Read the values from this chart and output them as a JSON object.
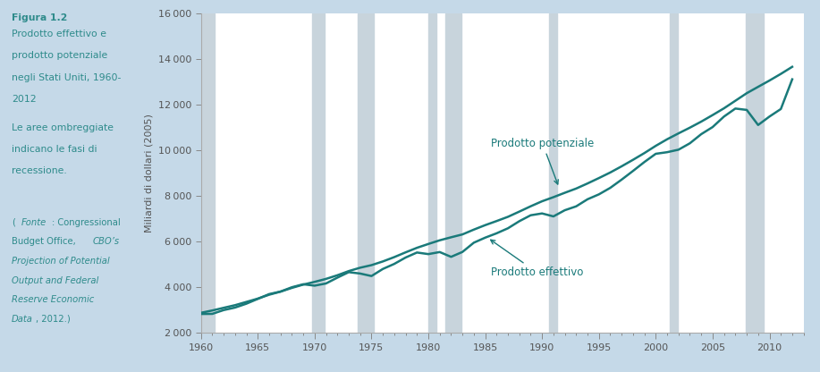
{
  "background_color": "#c5d9e8",
  "plot_bg_color": "#ffffff",
  "line_color": "#1a7a7a",
  "recession_color": "#c8d4dc",
  "ylabel": "Miliardi di dollari (2005)",
  "ylim": [
    2000,
    16000
  ],
  "xlim": [
    1960,
    2013
  ],
  "yticks": [
    2000,
    4000,
    6000,
    8000,
    10000,
    12000,
    14000,
    16000
  ],
  "xticks": [
    1960,
    1965,
    1970,
    1975,
    1980,
    1985,
    1990,
    1995,
    2000,
    2005,
    2010
  ],
  "recession_bands": [
    [
      1960.0,
      1961.2
    ],
    [
      1969.8,
      1970.9
    ],
    [
      1973.8,
      1975.2
    ],
    [
      1980.0,
      1980.7
    ],
    [
      1981.5,
      1982.9
    ],
    [
      1990.6,
      1991.3
    ],
    [
      2001.2,
      2001.9
    ],
    [
      2007.9,
      2009.5
    ]
  ],
  "label_potenziale": "Prodotto potenziale",
  "label_effettivo": "Prodotto effettivo",
  "years_potential": [
    1960,
    1961,
    1962,
    1963,
    1964,
    1965,
    1966,
    1967,
    1968,
    1969,
    1970,
    1971,
    1972,
    1973,
    1974,
    1975,
    1976,
    1977,
    1978,
    1979,
    1980,
    1981,
    1982,
    1983,
    1984,
    1985,
    1986,
    1987,
    1988,
    1989,
    1990,
    1991,
    1992,
    1993,
    1994,
    1995,
    1996,
    1997,
    1998,
    1999,
    2000,
    2001,
    2002,
    2003,
    2004,
    2005,
    2006,
    2007,
    2008,
    2009,
    2010,
    2011,
    2012
  ],
  "potential_gdp": [
    2881,
    2983,
    3100,
    3215,
    3358,
    3502,
    3672,
    3808,
    3971,
    4116,
    4235,
    4365,
    4524,
    4707,
    4854,
    4967,
    5129,
    5318,
    5527,
    5726,
    5893,
    6054,
    6186,
    6312,
    6522,
    6718,
    6896,
    7082,
    7310,
    7543,
    7762,
    7942,
    8134,
    8319,
    8542,
    8778,
    9022,
    9293,
    9577,
    9872,
    10188,
    10476,
    10734,
    10984,
    11248,
    11535,
    11831,
    12161,
    12492,
    12770,
    13046,
    13337,
    13646
  ],
  "years_actual": [
    1960,
    1961,
    1962,
    1963,
    1964,
    1965,
    1966,
    1967,
    1968,
    1969,
    1970,
    1971,
    1972,
    1973,
    1974,
    1975,
    1976,
    1977,
    1978,
    1979,
    1980,
    1981,
    1982,
    1983,
    1984,
    1985,
    1986,
    1987,
    1988,
    1989,
    1990,
    1991,
    1992,
    1993,
    1994,
    1995,
    1996,
    1997,
    1998,
    1999,
    2000,
    2001,
    2002,
    2003,
    2004,
    2005,
    2006,
    2007,
    2008,
    2009,
    2010,
    2011,
    2012
  ],
  "actual_gdp": [
    2830,
    2835,
    3000,
    3110,
    3280,
    3490,
    3700,
    3810,
    4000,
    4130,
    4070,
    4165,
    4420,
    4660,
    4600,
    4490,
    4800,
    5020,
    5300,
    5520,
    5450,
    5540,
    5330,
    5545,
    5950,
    6170,
    6360,
    6580,
    6890,
    7150,
    7230,
    7100,
    7370,
    7540,
    7850,
    8065,
    8350,
    8710,
    9090,
    9480,
    9840,
    9910,
    10020,
    10300,
    10700,
    11010,
    11470,
    11820,
    11760,
    11100,
    11470,
    11800,
    13100
  ],
  "title_bold": "Figura 1.2",
  "title_normal": "Prodotto effettivo e prodotto potenziale negli Stati Uniti, 1960-2012",
  "subtitle": "Le aree ombreggiate indicano le fasi di recessione.",
  "source_prefix": "(​Fonte",
  "source_normal1": ": Congressional Budget Office, ",
  "source_italic": "CBO’s Projection of Potential Output and Federal Reserve Economic Data",
  "source_normal2": ", 2012.)"
}
